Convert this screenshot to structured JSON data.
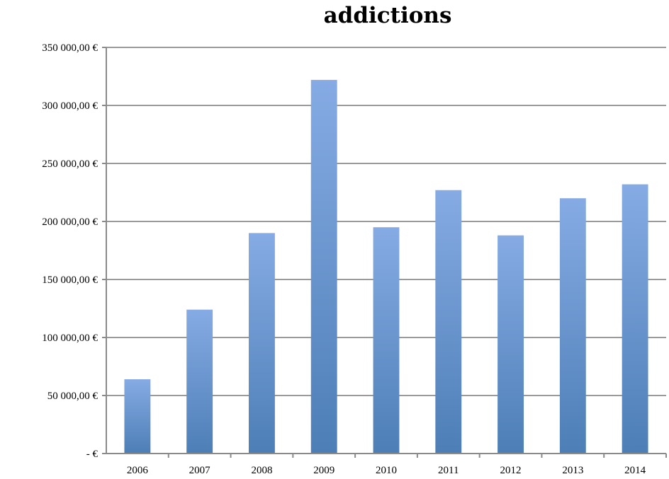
{
  "chart_data": {
    "type": "bar",
    "title": "addictions",
    "xlabel": "",
    "ylabel": "",
    "categories": [
      "2006",
      "2007",
      "2008",
      "2009",
      "2010",
      "2011",
      "2012",
      "2013",
      "2014"
    ],
    "values": [
      64000,
      124000,
      190000,
      322000,
      195000,
      227000,
      188000,
      220000,
      232000
    ],
    "ylim": [
      0,
      350000
    ],
    "yticks": [
      0,
      50000,
      100000,
      150000,
      200000,
      250000,
      300000,
      350000
    ],
    "ytick_labels": [
      "- €",
      "50 000,00 €",
      "100 000,00 €",
      "150 000,00 €",
      "200 000,00 €",
      "250 000,00 €",
      "300 000,00 €",
      "350 000,00 €"
    ],
    "grid": true,
    "legend": "none",
    "colors": {
      "bar_top": "#86abe4",
      "bar_bottom": "#4d7eb6",
      "grid": "#9a9a9a"
    }
  }
}
